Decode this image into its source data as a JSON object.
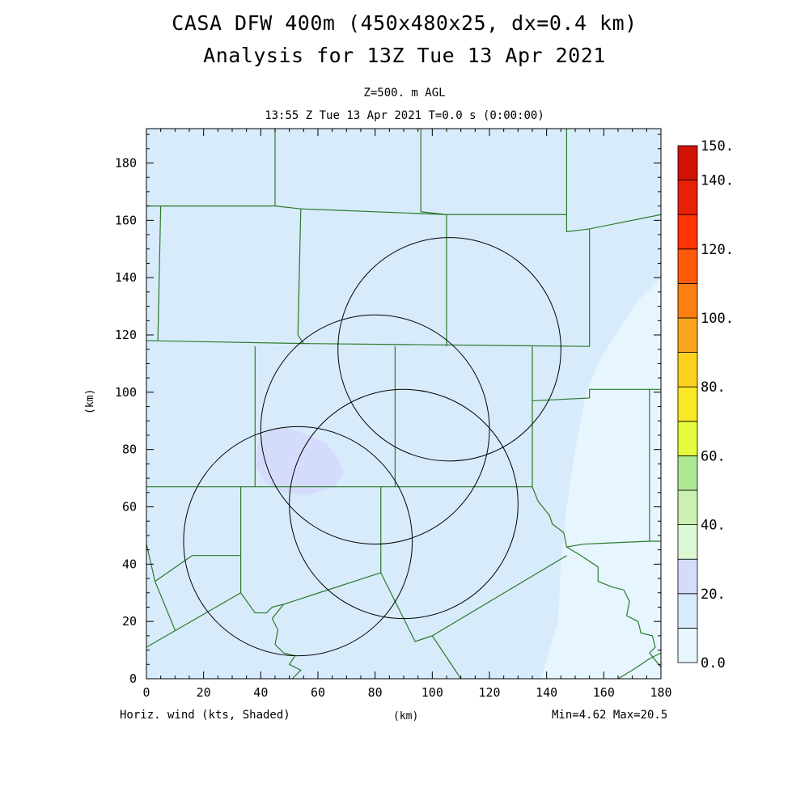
{
  "title": {
    "line1": "CASA DFW 400m (450x480x25, dx=0.4 km)",
    "line2": "Analysis for 13Z Tue 13 Apr 2021"
  },
  "subtitle": {
    "level": "Z=500. m AGL",
    "time": "13:55 Z Tue 13 Apr 2021    T=0.0 s (0:00:00)"
  },
  "footer": {
    "field": "Horiz. wind (kts, Shaded)",
    "x_unit": "(km)",
    "minmax": "Min=4.62 Max=20.5"
  },
  "chart_data": {
    "type": "heatmap",
    "title": "CASA DFW 400m (450x480x25, dx=0.4 km)",
    "subtitle": "Analysis for 13Z Tue 13 Apr 2021",
    "variable": "Horiz. wind (kts, Shaded)",
    "xlabel": "(km)",
    "ylabel": "(km)",
    "xlim": [
      0,
      180
    ],
    "ylim": [
      0,
      192
    ],
    "x_ticks": [
      0,
      20,
      40,
      60,
      80,
      100,
      120,
      140,
      160,
      180
    ],
    "y_ticks": [
      0,
      20,
      40,
      60,
      80,
      100,
      120,
      140,
      160,
      180
    ],
    "min": 4.62,
    "max": 20.5,
    "colorbar": {
      "levels": [
        0,
        10,
        20,
        30,
        40,
        50,
        60,
        70,
        80,
        90,
        100,
        110,
        120,
        130,
        140,
        150
      ],
      "labels": [
        "0.0",
        "20.",
        "40.",
        "60.",
        "80.",
        "100.",
        "120.",
        "140.",
        "150."
      ],
      "label_values": [
        0,
        20,
        40,
        60,
        80,
        100,
        120,
        140,
        150
      ],
      "colors": [
        "#e6f5fe",
        "#d8ebfb",
        "#d5dcfb",
        "#dcf8d4",
        "#caf1b0",
        "#aee792",
        "#e4fb3e",
        "#fbe926",
        "#fdd21e",
        "#fba41f",
        "#fd7e12",
        "#fe5a0a",
        "#fe3306",
        "#e82005",
        "#d01305",
        "#b50303"
      ]
    },
    "regions": [
      {
        "range": "0-10",
        "color": "#e6f5fe",
        "polygon": [
          [
            180,
            140
          ],
          [
            172,
            132
          ],
          [
            164,
            120
          ],
          [
            158,
            110
          ],
          [
            154,
            100
          ],
          [
            150,
            80
          ],
          [
            147,
            60
          ],
          [
            145,
            40
          ],
          [
            144,
            20
          ],
          [
            138,
            0
          ],
          [
            180,
            0
          ]
        ]
      },
      {
        "range": "20-30",
        "color": "#d5dcfb",
        "polygon": [
          [
            42,
            87
          ],
          [
            48,
            88
          ],
          [
            57,
            85
          ],
          [
            63,
            82
          ],
          [
            67,
            77
          ],
          [
            69,
            72
          ],
          [
            66,
            67
          ],
          [
            56,
            64
          ],
          [
            48,
            65
          ],
          [
            42,
            68
          ],
          [
            38,
            74
          ],
          [
            39,
            82
          ]
        ]
      }
    ],
    "radar_circles": [
      {
        "cx": 106,
        "cy": 115,
        "r": 39
      },
      {
        "cx": 80,
        "cy": 87,
        "r": 40
      },
      {
        "cx": 90,
        "cy": 61,
        "r": 40
      },
      {
        "cx": 53,
        "cy": 48,
        "r": 40
      }
    ],
    "boundaries": [
      [
        [
          45,
          192
        ],
        [
          45,
          165
        ]
      ],
      [
        [
          0,
          165
        ],
        [
          45,
          165
        ],
        [
          54,
          164
        ]
      ],
      [
        [
          54,
          164
        ],
        [
          53,
          120
        ],
        [
          55,
          117
        ]
      ],
      [
        [
          54,
          164
        ],
        [
          105,
          162
        ]
      ],
      [
        [
          96,
          192
        ],
        [
          96,
          163
        ],
        [
          105,
          162
        ]
      ],
      [
        [
          105,
          162
        ],
        [
          147,
          162
        ],
        [
          147,
          192
        ]
      ],
      [
        [
          105,
          162
        ],
        [
          105,
          116
        ]
      ],
      [
        [
          147,
          162
        ],
        [
          147,
          156
        ],
        [
          155,
          157
        ],
        [
          180,
          162
        ]
      ],
      [
        [
          155,
          157
        ],
        [
          155,
          116
        ]
      ],
      [
        [
          5,
          165
        ],
        [
          4,
          118
        ]
      ],
      [
        [
          0,
          118
        ],
        [
          55,
          117
        ]
      ],
      [
        [
          55,
          117
        ],
        [
          155,
          116
        ]
      ],
      [
        [
          38,
          116
        ],
        [
          38,
          67
        ]
      ],
      [
        [
          87,
          116
        ],
        [
          87,
          67
        ]
      ],
      [
        [
          135,
          116
        ],
        [
          135,
          67
        ]
      ],
      [
        [
          135,
          97
        ],
        [
          155,
          98
        ],
        [
          155,
          101
        ],
        [
          175,
          101
        ],
        [
          180,
          101
        ]
      ],
      [
        [
          176,
          101
        ],
        [
          176,
          48
        ]
      ],
      [
        [
          0,
          67
        ],
        [
          38,
          67
        ],
        [
          87,
          67
        ],
        [
          135,
          67
        ]
      ],
      [
        [
          33,
          67
        ],
        [
          33,
          30
        ]
      ],
      [
        [
          82,
          67
        ],
        [
          82,
          37
        ]
      ],
      [
        [
          0,
          47
        ],
        [
          3,
          34
        ],
        [
          10,
          17
        ]
      ],
      [
        [
          3,
          34
        ],
        [
          16,
          43
        ],
        [
          33,
          43
        ]
      ],
      [
        [
          0,
          11
        ],
        [
          33,
          30
        ]
      ],
      [
        [
          33,
          30
        ],
        [
          38,
          23
        ],
        [
          42,
          23
        ],
        [
          44,
          25
        ],
        [
          48,
          26
        ],
        [
          82,
          37
        ]
      ],
      [
        [
          82,
          37
        ],
        [
          94,
          13
        ],
        [
          100,
          15
        ]
      ],
      [
        [
          100,
          15
        ],
        [
          110,
          0
        ]
      ],
      [
        [
          100,
          15
        ],
        [
          147,
          43
        ]
      ],
      [
        [
          135,
          67
        ],
        [
          137,
          62
        ],
        [
          141,
          57
        ],
        [
          142,
          54
        ],
        [
          146,
          51
        ],
        [
          147,
          46
        ],
        [
          153,
          47
        ],
        [
          176,
          48
        ],
        [
          180,
          48
        ]
      ],
      [
        [
          147,
          46
        ],
        [
          152,
          43
        ],
        [
          158,
          39
        ],
        [
          158,
          34
        ],
        [
          163,
          32
        ],
        [
          167,
          31
        ],
        [
          169,
          27
        ],
        [
          168,
          22
        ],
        [
          172,
          20
        ],
        [
          173,
          16
        ],
        [
          177,
          15
        ],
        [
          178,
          11
        ],
        [
          176,
          9
        ],
        [
          180,
          4
        ]
      ],
      [
        [
          165,
          0
        ],
        [
          170,
          3
        ],
        [
          176,
          7
        ],
        [
          180,
          9
        ]
      ],
      [
        [
          48,
          26
        ],
        [
          44,
          21
        ],
        [
          46,
          17
        ],
        [
          45,
          12
        ],
        [
          48,
          9
        ],
        [
          52,
          8
        ],
        [
          50,
          5
        ],
        [
          54,
          3
        ],
        [
          51,
          0
        ]
      ]
    ]
  }
}
